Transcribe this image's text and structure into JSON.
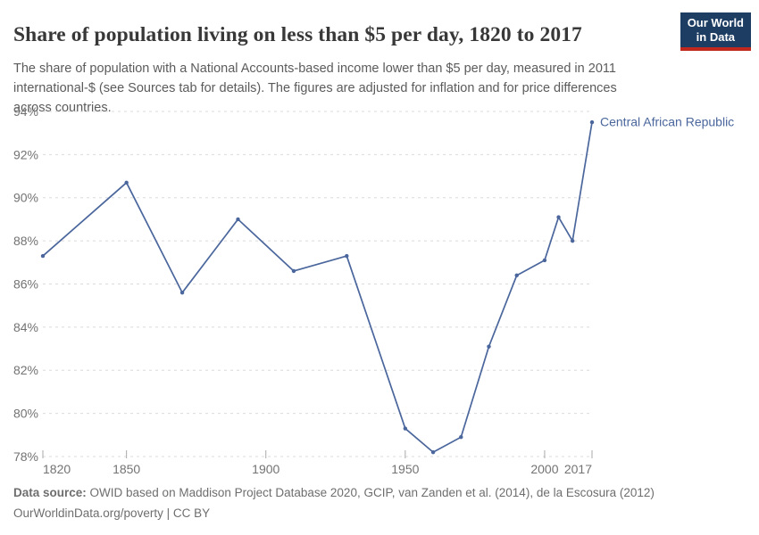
{
  "logo": {
    "line1": "Our World",
    "line2": "in Data",
    "bg_color": "#1d3d63",
    "stripe_color": "#c0281e"
  },
  "chart_data": {
    "type": "line",
    "title": "Share of population living on less than $5 per day, 1820 to 2017",
    "subtitle": "The share of population with a National Accounts-based income lower than $5 per day, measured in 2011 international-$ (see Sources tab for details). The figures are adjusted for inflation and for price differences across countries.",
    "xlabel": "",
    "ylabel": "",
    "xlim": [
      1820,
      2017
    ],
    "ylim": [
      78,
      94
    ],
    "grid": "horizontal-dashed",
    "legend_position": "label-at-line-end",
    "xticks": [
      {
        "value": 1820,
        "label": "1820"
      },
      {
        "value": 1850,
        "label": "1850"
      },
      {
        "value": 1900,
        "label": "1900"
      },
      {
        "value": 1950,
        "label": "1950"
      },
      {
        "value": 2000,
        "label": "2000"
      },
      {
        "value": 2017,
        "label": "2017"
      }
    ],
    "yticks": [
      {
        "value": 78,
        "label": "78%"
      },
      {
        "value": 80,
        "label": "80%"
      },
      {
        "value": 82,
        "label": "82%"
      },
      {
        "value": 84,
        "label": "84%"
      },
      {
        "value": 86,
        "label": "86%"
      },
      {
        "value": 88,
        "label": "88%"
      },
      {
        "value": 90,
        "label": "90%"
      },
      {
        "value": 92,
        "label": "92%"
      },
      {
        "value": 94,
        "label": "94%"
      }
    ],
    "series": [
      {
        "name": "Central African Republic",
        "color": "#4a669c",
        "x": [
          1820,
          1850,
          1870,
          1890,
          1910,
          1929,
          1950,
          1960,
          1970,
          1980,
          1990,
          2000,
          2005,
          2010,
          2017
        ],
        "values": [
          87.3,
          90.7,
          85.6,
          89.0,
          86.6,
          87.3,
          79.3,
          78.2,
          78.9,
          83.1,
          86.4,
          87.1,
          89.1,
          88.0,
          93.5
        ]
      }
    ]
  },
  "footer": {
    "source_label": "Data source:",
    "source_text": " OWID based on Maddison Project Database 2020, GCIP, van Zanden et al. (2014), de la Escosura (2012)",
    "license_line": "OurWorldinData.org/poverty | CC BY"
  }
}
